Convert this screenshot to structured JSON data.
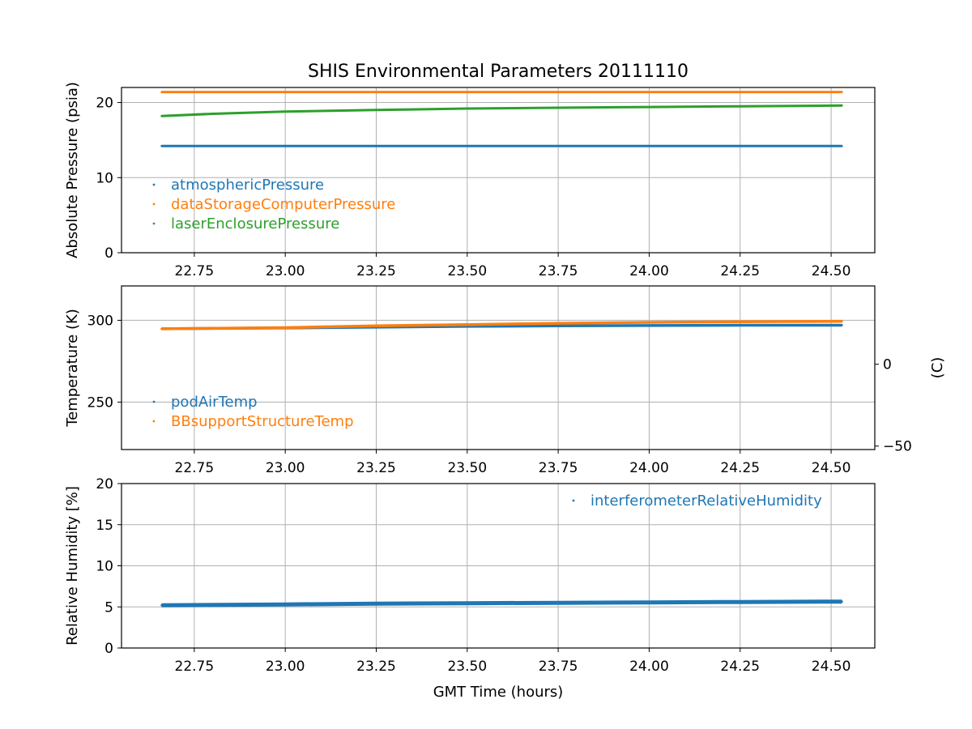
{
  "chart_data": [
    {
      "type": "scatter",
      "title": "SHIS Environmental Parameters 20111110",
      "xlabel": "",
      "ylabel": "Absolute Pressure (psia)",
      "xlim": [
        22.55,
        24.62
      ],
      "ylim": [
        0,
        22
      ],
      "xticks": [
        "22.75",
        "23.00",
        "23.25",
        "23.50",
        "23.75",
        "24.00",
        "24.25",
        "24.50"
      ],
      "yticks": [
        "0",
        "10",
        "20"
      ],
      "ytick_values": [
        0,
        10,
        20
      ],
      "grid": true,
      "legend_position": "lower-left",
      "series": [
        {
          "name": "atmosphericPressure",
          "color": "#1f77b4",
          "x": [
            22.66,
            23.0,
            23.5,
            24.0,
            24.53
          ],
          "values": [
            14.2,
            14.2,
            14.2,
            14.2,
            14.2
          ]
        },
        {
          "name": "dataStorageComputerPressure",
          "color": "#ff7f0e",
          "x": [
            22.66,
            23.0,
            23.5,
            24.0,
            24.53
          ],
          "values": [
            21.4,
            21.4,
            21.4,
            21.4,
            21.4
          ]
        },
        {
          "name": "laserEnclosurePressure",
          "color": "#2ca02c",
          "x": [
            22.66,
            22.8,
            23.0,
            23.25,
            23.5,
            23.75,
            24.0,
            24.25,
            24.53
          ],
          "values": [
            18.2,
            18.5,
            18.8,
            19.0,
            19.2,
            19.3,
            19.4,
            19.5,
            19.6
          ]
        }
      ]
    },
    {
      "type": "scatter",
      "xlabel": "",
      "ylabel": "Temperature (K)",
      "ylabel_right": "(C)",
      "xlim": [
        22.55,
        24.62
      ],
      "ylim": [
        221,
        321
      ],
      "xticks": [
        "22.75",
        "23.00",
        "23.25",
        "23.50",
        "23.75",
        "24.00",
        "24.25",
        "24.50"
      ],
      "yticks": [
        "250",
        "300"
      ],
      "ytick_values": [
        250,
        300
      ],
      "yticks_right": [
        "−50",
        "0"
      ],
      "ytick_right_values": [
        223.15,
        273.15
      ],
      "grid": true,
      "legend_position": "lower-left",
      "series": [
        {
          "name": "podAirTemp",
          "color": "#1f77b4",
          "x": [
            22.66,
            23.0,
            23.25,
            23.5,
            23.75,
            24.0,
            24.25,
            24.53
          ],
          "values": [
            294.8,
            295.3,
            295.8,
            296.3,
            296.6,
            296.8,
            297.0,
            297.0
          ]
        },
        {
          "name": "BBsupportStructureTemp",
          "color": "#ff7f0e",
          "x": [
            22.66,
            23.0,
            23.25,
            23.5,
            23.75,
            24.0,
            24.25,
            24.53
          ],
          "values": [
            294.8,
            295.5,
            296.6,
            297.4,
            298.2,
            298.7,
            299.1,
            299.4
          ]
        }
      ]
    },
    {
      "type": "scatter",
      "xlabel": "GMT Time (hours)",
      "ylabel": "Relative Humidity [%]",
      "xlim": [
        22.55,
        24.62
      ],
      "ylim": [
        0,
        20
      ],
      "xticks": [
        "22.75",
        "23.00",
        "23.25",
        "23.50",
        "23.75",
        "24.00",
        "24.25",
        "24.50"
      ],
      "yticks": [
        "0",
        "5",
        "10",
        "15",
        "20"
      ],
      "ytick_values": [
        0,
        5,
        10,
        15,
        20
      ],
      "grid": true,
      "legend_position": "upper-right",
      "series": [
        {
          "name": "interferometerRelativeHumidity",
          "color": "#1f77b4",
          "x": [
            22.66,
            23.0,
            23.25,
            23.5,
            23.75,
            24.0,
            24.25,
            24.53
          ],
          "values": [
            5.2,
            5.3,
            5.4,
            5.45,
            5.5,
            5.55,
            5.6,
            5.65
          ]
        }
      ]
    }
  ]
}
